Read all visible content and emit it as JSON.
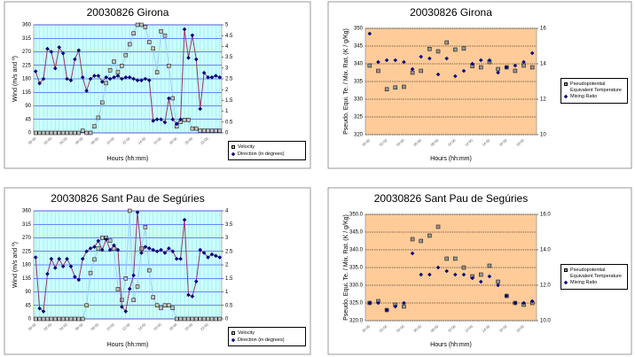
{
  "chart_data": [
    {
      "type": "line",
      "title": "20030826 Girona",
      "x_label": "Hours (hh:mm)",
      "y_label": "Wind (m/s and º)",
      "plot_bg": "#ccffff",
      "grid": true,
      "categories": [
        "00:00",
        null,
        null,
        null,
        "02:00",
        null,
        null,
        null,
        "04:00",
        null,
        null,
        null,
        "06:00",
        null,
        null,
        null,
        "08:00",
        null,
        null,
        null,
        "10:00",
        null,
        null,
        null,
        "12:00",
        null,
        null,
        null,
        "14:00",
        null,
        null,
        null,
        "16:00",
        null,
        null,
        null,
        "18:00",
        null,
        null,
        null,
        "20:00",
        null,
        null,
        null,
        "22:00",
        null,
        null,
        null
      ],
      "ylim": [
        0,
        360
      ],
      "yticks": [
        0,
        45,
        90,
        135,
        180,
        225,
        270,
        315,
        360
      ],
      "y2lim": [
        0,
        5
      ],
      "y2ticks": [
        0,
        0.5,
        1,
        1.5,
        2,
        2.5,
        3,
        3.5,
        4,
        4.5,
        5
      ],
      "series": [
        {
          "name": "Velocity",
          "axis": "y2",
          "color": "#99ccff",
          "marker": "square",
          "marker_color": "#c0c0c0",
          "line": true,
          "values": [
            0,
            0,
            0,
            0,
            0,
            0,
            0,
            0,
            0,
            0,
            0,
            0,
            0.1,
            0,
            0,
            0.3,
            0.7,
            1.4,
            2.3,
            2.9,
            3.3,
            2.8,
            3.1,
            3.6,
            4.1,
            4.6,
            5,
            5,
            4.9,
            4.2,
            3.9,
            2.8,
            4.7,
            4.5,
            3.1,
            1.6,
            0.3,
            0.5,
            0.6,
            0.6,
            0.2,
            0.2,
            0.1,
            0.1,
            0.1,
            0.1,
            0.1,
            0.1
          ]
        },
        {
          "name": "Direction (in degrees)",
          "color": "#993366",
          "marker": "diamond",
          "marker_color": "#000080",
          "line": true,
          "values": [
            205,
            165,
            180,
            280,
            270,
            215,
            285,
            265,
            180,
            175,
            245,
            275,
            185,
            140,
            180,
            190,
            190,
            170,
            185,
            180,
            185,
            190,
            180,
            185,
            185,
            180,
            175,
            175,
            180,
            175,
            40,
            45,
            45,
            35,
            115,
            45,
            30,
            45,
            345,
            250,
            325,
            245,
            80,
            200,
            185,
            185,
            190,
            185
          ]
        }
      ]
    },
    {
      "type": "scatter",
      "title": "20030826 Girona",
      "x_label": "Hours (hh:mm)",
      "y_label": "Pseudo. Equi. Te. / Mix. Rat. (K / g/Kg)",
      "plot_bg": "#ffcc99",
      "grid": true,
      "categories": [
        "00:00",
        null,
        "02:00",
        null,
        "04:00",
        null,
        "06:00",
        null,
        "08:00",
        null,
        "10:00",
        null,
        "12:00",
        null,
        "14:00",
        null,
        "16:00",
        null,
        "18:00",
        null
      ],
      "ylim": [
        320,
        350
      ],
      "yticks": [
        320,
        325,
        330,
        335,
        340,
        345,
        350
      ],
      "y2lim": [
        10,
        16
      ],
      "y2ticks": [
        10,
        12,
        14,
        16
      ],
      "series": [
        {
          "name": "Pseudopotential Equivalent Temperature",
          "color": "#808080",
          "marker": "square",
          "marker_color": "#969696",
          "line": false,
          "values": [
            339.5,
            338,
            332.8,
            333.3,
            333.5,
            337.5,
            338,
            344.2,
            343.5,
            346,
            344,
            344.3,
            339.3,
            339,
            340.5,
            338.5,
            339,
            338,
            339.5,
            339
          ]
        },
        {
          "name": "Mixing Ratio",
          "axis": "y2",
          "color": "#000080",
          "marker": "diamond",
          "marker_color": "#000080",
          "line": false,
          "values": [
            15.7,
            14.1,
            14.2,
            14.2,
            14.1,
            13.7,
            14.4,
            14.3,
            13.4,
            14.3,
            13.3,
            13.6,
            14.0,
            14.2,
            14.2,
            13.5,
            13.8,
            13.9,
            14.1,
            14.6
          ]
        }
      ]
    },
    {
      "type": "line",
      "title": "20030826 Sant Pau de Segúries",
      "x_label": "Hours (hh:mm)",
      "y_label": "Wind (m/s and º)",
      "plot_bg": "#ccffff",
      "grid": true,
      "categories": [
        "00:00",
        null,
        null,
        null,
        "02:00",
        null,
        null,
        null,
        "04:00",
        null,
        null,
        null,
        "06:00",
        null,
        null,
        null,
        "08:00",
        null,
        null,
        null,
        "10:00",
        null,
        null,
        null,
        "12:00",
        null,
        null,
        null,
        "14:00",
        null,
        null,
        null,
        "16:00",
        null,
        null,
        null,
        "18:00",
        null,
        null,
        null,
        "20:00",
        null,
        null,
        null,
        "22:00",
        null,
        null,
        null
      ],
      "ylim": [
        0,
        360
      ],
      "yticks": [
        0,
        45,
        90,
        135,
        180,
        225,
        270,
        315,
        360
      ],
      "y2lim": [
        0,
        4
      ],
      "y2ticks": [
        0,
        0.5,
        1,
        1.5,
        2,
        2.5,
        3,
        3.5,
        4
      ],
      "series": [
        {
          "name": "Velocity",
          "axis": "y2",
          "color": "#99ccff",
          "marker": "square",
          "marker_color": "#c0c0c0",
          "line": true,
          "values": [
            0,
            0,
            0,
            0,
            0,
            0,
            0,
            0,
            0,
            0,
            0,
            0,
            0,
            0.5,
            1.7,
            2.2,
            2.6,
            3,
            3,
            2.9,
            2.6,
            1.1,
            0.7,
            1.5,
            4,
            0.7,
            1.2,
            2.6,
            3.4,
            1.8,
            0.8,
            0.5,
            0.4,
            0.5,
            0.5,
            0.4,
            0,
            0,
            0,
            0,
            0,
            0,
            0,
            0,
            0,
            0,
            0,
            0
          ]
        },
        {
          "name": "Direction (in degrees)",
          "color": "#993366",
          "marker": "diamond",
          "marker_color": "#000080",
          "line": true,
          "values": [
            205,
            35,
            25,
            150,
            200,
            170,
            200,
            175,
            200,
            175,
            140,
            130,
            200,
            225,
            235,
            240,
            260,
            230,
            265,
            230,
            245,
            230,
            40,
            25,
            100,
            145,
            355,
            220,
            240,
            235,
            230,
            225,
            230,
            220,
            235,
            225,
            200,
            200,
            330,
            80,
            75,
            125,
            230,
            220,
            205,
            215,
            210,
            205
          ]
        }
      ]
    },
    {
      "type": "scatter",
      "title": "20030826 Sant Pau de Segúries",
      "x_label": "Hours (hh:mm)",
      "y_label": "Pseudo. Equi. Te. / Mix. Rat. (K / g/Kg)",
      "plot_bg": "#ffcc99",
      "grid": true,
      "categories": [
        "00:00",
        null,
        "02:00",
        null,
        "04:00",
        null,
        "06:00",
        null,
        "08:00",
        null,
        "10:00",
        null,
        "12:00",
        null,
        "14:00",
        null,
        "16:00",
        null,
        "18:00",
        null
      ],
      "ylim": [
        320,
        350
      ],
      "yticks": [
        {
          "value": 320,
          "label": "320.0"
        },
        {
          "value": 325,
          "label": "325.0"
        },
        {
          "value": 330,
          "label": "330.0"
        },
        {
          "value": 335,
          "label": "335.0"
        },
        {
          "value": 340,
          "label": "340.0"
        },
        {
          "value": 345,
          "label": "345.0"
        },
        {
          "value": 350,
          "label": "350.0"
        }
      ],
      "y2lim": [
        10,
        16
      ],
      "y2ticks": [
        {
          "value": 10,
          "label": "10.0"
        },
        {
          "value": 12,
          "label": "12.0"
        },
        {
          "value": 14,
          "label": "14.0"
        },
        {
          "value": 16,
          "label": "16.0"
        }
      ],
      "series": [
        {
          "name": "Pseudopotential Equivalent Temperature",
          "color": "#808080",
          "marker": "square",
          "marker_color": "#969696",
          "line": false,
          "values": [
            325,
            325.5,
            323,
            324.5,
            324,
            343,
            342.5,
            344,
            346.5,
            337.5,
            337.5,
            335,
            332.5,
            333,
            335.5,
            331,
            327,
            325,
            324.5,
            325
          ]
        },
        {
          "name": "Mixing Ratio",
          "axis": "y2",
          "color": "#000080",
          "marker": "diamond",
          "marker_color": "#000080",
          "line": false,
          "values": [
            11.0,
            11.0,
            10.6,
            10.8,
            11.0,
            13.8,
            12.6,
            12.6,
            13.0,
            12.8,
            12.6,
            12.6,
            12.4,
            12.2,
            12.5,
            12.0,
            11.4,
            11.0,
            11.0,
            11.1
          ]
        }
      ]
    }
  ]
}
